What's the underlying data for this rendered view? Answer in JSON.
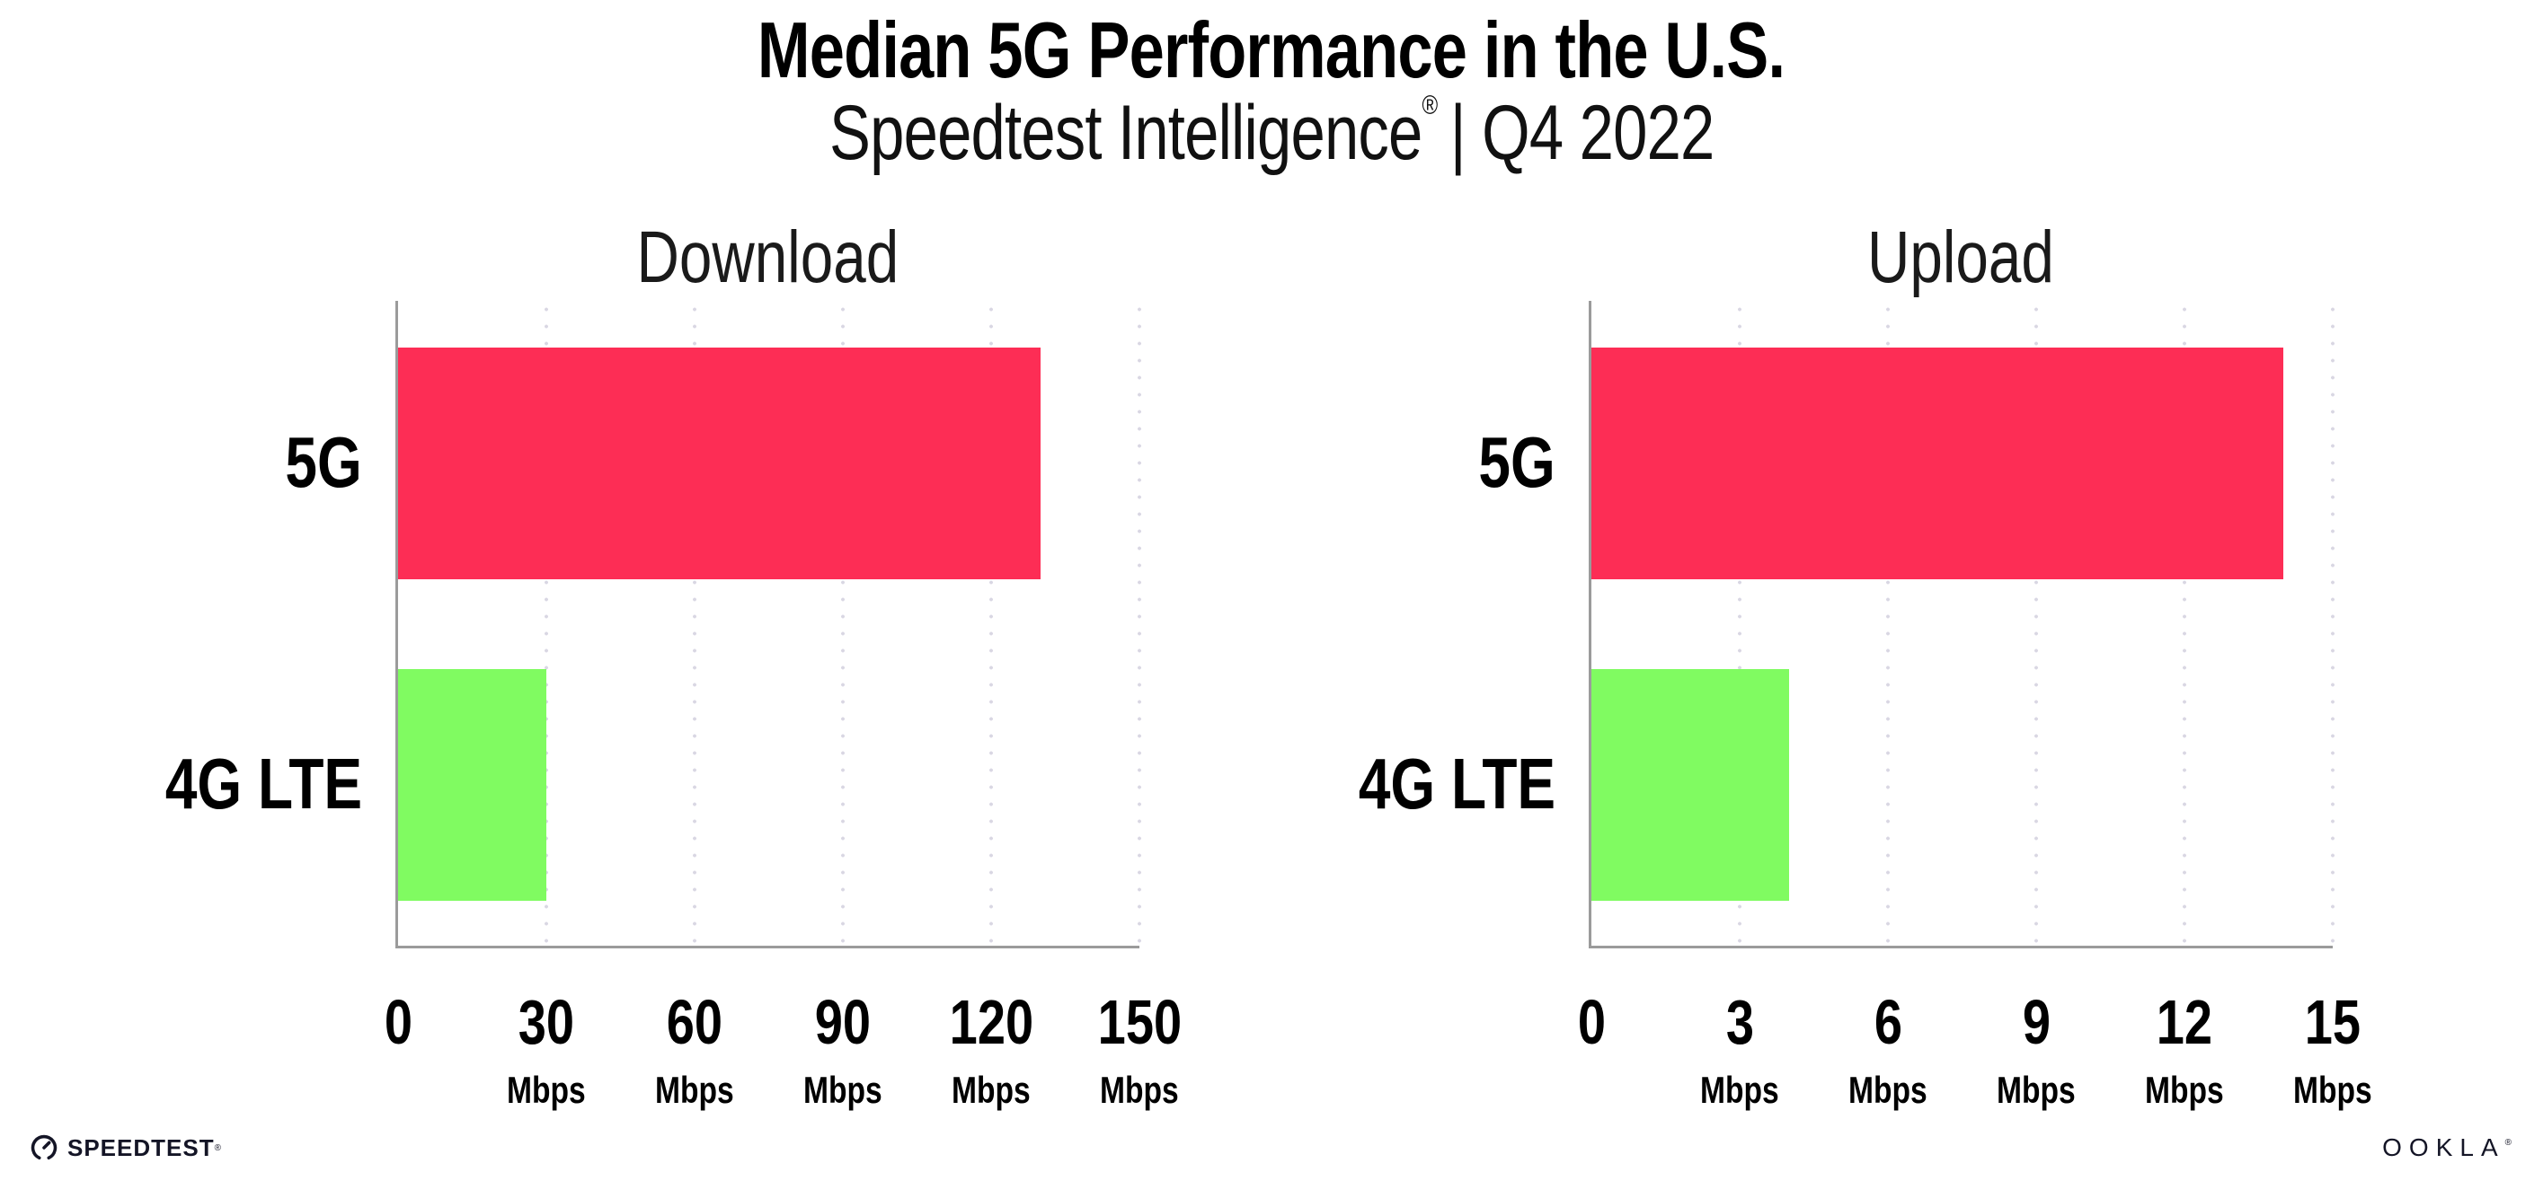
{
  "header": {
    "title": "Median 5G Performance in the U.S.",
    "subtitle_brand": "Speedtest Intelligence",
    "subtitle_reg": "®",
    "subtitle_rest": "| Q4 2022"
  },
  "chart_data": [
    {
      "type": "bar",
      "orientation": "horizontal",
      "title": "Download",
      "categories": [
        "5G",
        "4G LTE"
      ],
      "values": [
        130,
        30
      ],
      "unit": "Mbps",
      "xlabel": "",
      "ylabel": "",
      "xlim": [
        0,
        150
      ],
      "xticks": [
        0,
        30,
        60,
        90,
        120,
        150
      ],
      "bar_colors": [
        "#fd2d55",
        "#80fb61"
      ],
      "grid": "vertical-dotted",
      "legend": "none"
    },
    {
      "type": "bar",
      "orientation": "horizontal",
      "title": "Upload",
      "categories": [
        "5G",
        "4G LTE"
      ],
      "values": [
        14,
        4
      ],
      "unit": "Mbps",
      "xlabel": "",
      "ylabel": "",
      "xlim": [
        0,
        15
      ],
      "xticks": [
        0,
        3,
        6,
        9,
        12,
        15
      ],
      "bar_colors": [
        "#fd2d55",
        "#80fb61"
      ],
      "grid": "vertical-dotted",
      "legend": "none"
    }
  ],
  "footer": {
    "speedtest_label": "SPEEDTEST",
    "speedtest_mark": "®",
    "ookla_label": "OOKLA",
    "ookla_mark": "®"
  },
  "colors": {
    "bar_5g": "#fd2d55",
    "bar_4g_lte": "#80fb61",
    "axis": "#9b9b9b",
    "grid_dots": "#d9d7e3",
    "text": "#000000",
    "logo": "#141526",
    "background": "#ffffff"
  }
}
